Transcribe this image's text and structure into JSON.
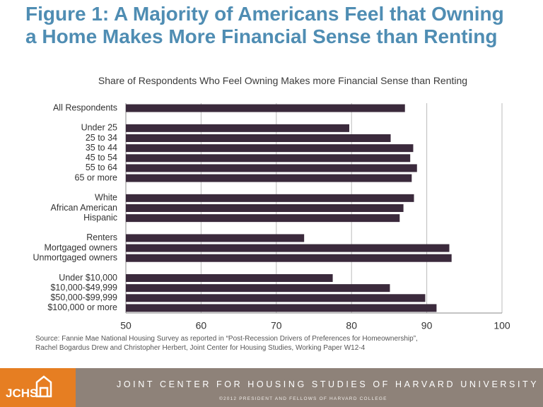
{
  "chart_data": {
    "type": "barh",
    "title": "Figure 1: A Majority of Americans Feel that Owning a Home Makes More Financial Sense than Renting",
    "subtitle": "Share of Respondents Who Feel Owning Makes more Financial Sense than Renting",
    "source": "Source: Fannie Mae National Housing Survey as reported in “Post-Recession Drivers of Preferences for Homeownership”, Rachel Bogardus Drew and Christopher Herbert, Joint Center for Housing Studies, Working Paper W12-4",
    "categories": [
      "All Respondents",
      null,
      "Under 25",
      "25 to 34",
      "35 to 44",
      "45 to 54",
      "55 to 64",
      "65 or more",
      null,
      "White",
      "African American",
      "Hispanic",
      null,
      "Renters",
      "Mortgaged owners",
      "Unmortgaged owners",
      null,
      "Under $10,000",
      "$10,000-$49,999",
      "$50,000-$99,999",
      "$100,000 or more"
    ],
    "values": [
      87.1,
      null,
      79.7,
      85.2,
      88.2,
      87.8,
      88.7,
      88.0,
      null,
      88.3,
      86.9,
      86.4,
      null,
      73.7,
      93.0,
      93.3,
      null,
      77.5,
      85.1,
      89.8,
      91.3
    ],
    "color": "#3b2a3c",
    "xlim": [
      50,
      100
    ],
    "xticks": [
      50,
      60,
      70,
      80,
      90,
      100
    ],
    "grid": true
  },
  "footer": {
    "logo": "JCHS",
    "name": "JOINT CENTER FOR HOUSING STUDIES OF HARVARD UNIVERSITY",
    "copyright": "©2012 PRESIDENT AND FELLOWS OF HARVARD COLLEGE"
  }
}
